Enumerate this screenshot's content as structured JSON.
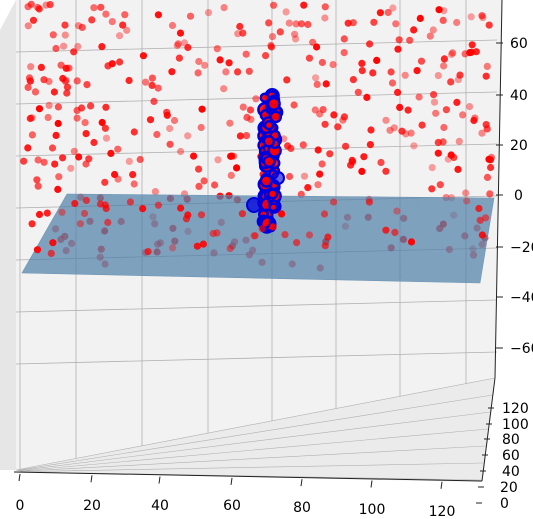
{
  "chart_data": {
    "type": "scatter",
    "projection": "3d",
    "title": "",
    "xlabel": "",
    "ylabel": "",
    "zlabel": "",
    "x_ticks": [
      "0",
      "20",
      "40",
      "60",
      "80",
      "100",
      "120"
    ],
    "y_ticks": [
      "120",
      "100",
      "80",
      "60",
      "40",
      "20",
      "0"
    ],
    "z_ticks": [
      "60",
      "40",
      "20",
      "0",
      "−20",
      "−40",
      "−60"
    ],
    "xlim": [
      0,
      130
    ],
    "ylim": [
      0,
      130
    ],
    "zlim": [
      -75,
      70
    ],
    "grid": true,
    "pane_color": "#f2f2f2",
    "grid_color": "#b0b0b0",
    "colors": {
      "scatter_points": "#ff0000",
      "vertical_cluster_outline": "#0000dd",
      "plane": "#4d7fa8"
    },
    "series": [
      {
        "marker": "o",
        "color": "#ff0000",
        "distribution": "uniform random cloud filling the 3D box",
        "approx_count": 420
      },
      {
        "marker": "o",
        "color": "#ff0000",
        "edgecolor": "#0000dd",
        "distribution": "tight vertical column at x≈65, y≈65 spanning z≈-10 to 40"
      }
    ],
    "surface": {
      "type": "plane",
      "z_level": -5,
      "color": "#4d7fa8",
      "alpha": 0.7
    }
  }
}
